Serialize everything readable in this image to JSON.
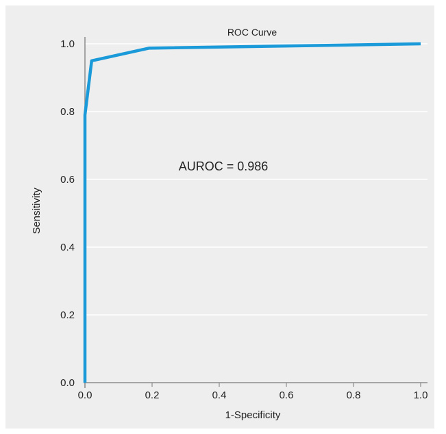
{
  "chart_data": {
    "type": "line",
    "title": "ROC Curve",
    "xlabel": "1-Specificity",
    "ylabel": "Sensitivity",
    "xlim": [
      0.0,
      1.0
    ],
    "ylim": [
      0.0,
      1.0
    ],
    "xticks": [
      "0.0",
      "0.2",
      "0.4",
      "0.6",
      "0.8",
      "1.0"
    ],
    "yticks": [
      "0.0",
      "0.2",
      "0.4",
      "0.6",
      "0.8",
      "1.0"
    ],
    "grid": "horizontal",
    "annotation": "AUROC = 0.986",
    "colors": {
      "line": "#1a9ad9",
      "background": "#eeeeee",
      "grid": "#ffffff",
      "axis": "#8c8c8c"
    },
    "series": [
      {
        "x": [
          0.0,
          0.0,
          0.02,
          0.19,
          1.0
        ],
        "y": [
          0.0,
          0.79,
          0.95,
          0.987,
          1.0
        ]
      }
    ]
  }
}
